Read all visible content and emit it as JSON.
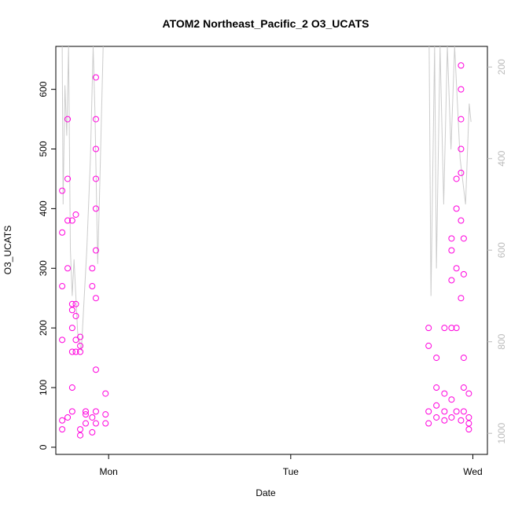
{
  "chart_data": {
    "type": "scatter",
    "title": "ATOM2 Northeast_Pacific_2 O3_UCATS",
    "xlabel": "Date",
    "ylabel": "O3_UCATS",
    "xlim": [
      -0.29,
      2.08
    ],
    "xticks": [
      {
        "value": 0,
        "label": "Mon"
      },
      {
        "value": 1,
        "label": "Tue"
      },
      {
        "value": 2,
        "label": "Wed"
      }
    ],
    "ylim": [
      -12,
      672
    ],
    "yticks": [
      0,
      100,
      200,
      300,
      400,
      500,
      600
    ],
    "y2lim": [
      1046,
      155
    ],
    "y2ticks": [
      200,
      400,
      600,
      800,
      1000
    ],
    "y2tick_color": "#bbbbbb",
    "series": [
      {
        "type": "line",
        "axis": "y2",
        "color": "#cccccc",
        "x": [
          -0.255,
          -0.25,
          -0.24,
          -0.23,
          -0.22,
          -0.21,
          -0.2,
          -0.19,
          -0.17,
          -0.15,
          -0.12,
          -0.1,
          -0.085,
          -0.075,
          -0.06,
          -0.05,
          -0.03,
          null,
          1.76,
          1.77,
          1.79,
          1.8,
          1.82,
          1.84,
          1.86,
          1.88,
          1.9,
          1.93,
          1.96,
          1.98,
          1.99
        ],
        "values": [
          155,
          500,
          240,
          350,
          155,
          600,
          700,
          620,
          780,
          820,
          600,
          400,
          155,
          300,
          630,
          480,
          155,
          null,
          155,
          700,
          155,
          640,
          155,
          500,
          155,
          380,
          155,
          400,
          500,
          280,
          320
        ]
      },
      {
        "type": "scatter",
        "color": "#ff00dd",
        "x": [
          -0.255,
          -0.255,
          -0.255,
          -0.255,
          -0.255,
          -0.255,
          -0.225,
          -0.225,
          -0.225,
          -0.225,
          -0.225,
          -0.2,
          -0.2,
          -0.2,
          -0.2,
          -0.2,
          -0.2,
          -0.2,
          -0.18,
          -0.18,
          -0.18,
          -0.18,
          -0.18,
          -0.156,
          -0.156,
          -0.156,
          -0.156,
          -0.156,
          -0.126,
          -0.126,
          -0.126,
          -0.09,
          -0.09,
          -0.09,
          -0.09,
          -0.07,
          -0.07,
          -0.07,
          -0.07,
          -0.07,
          -0.07,
          -0.07,
          -0.07,
          -0.07,
          -0.07,
          -0.017,
          -0.017,
          -0.017,
          1.757,
          1.757,
          1.757,
          1.757,
          1.8,
          1.8,
          1.8,
          1.8,
          1.844,
          1.844,
          1.844,
          1.844,
          1.883,
          1.883,
          1.883,
          1.883,
          1.883,
          1.883,
          1.91,
          1.91,
          1.91,
          1.91,
          1.91,
          1.935,
          1.935,
          1.935,
          1.935,
          1.935,
          1.935,
          1.935,
          1.935,
          1.95,
          1.95,
          1.95,
          1.95,
          1.95,
          1.978,
          1.978,
          1.978,
          1.978
        ],
        "values": [
          30,
          45,
          180,
          270,
          360,
          430,
          50,
          300,
          380,
          550,
          450,
          60,
          100,
          160,
          200,
          230,
          240,
          380,
          390,
          240,
          220,
          180,
          160,
          170,
          185,
          160,
          20,
          30,
          40,
          55,
          60,
          25,
          50,
          270,
          300,
          620,
          550,
          500,
          450,
          400,
          330,
          250,
          130,
          60,
          40,
          40,
          55,
          90,
          40,
          60,
          170,
          200,
          50,
          70,
          100,
          150,
          45,
          60,
          90,
          200,
          50,
          330,
          350,
          280,
          200,
          80,
          60,
          400,
          450,
          300,
          200,
          600,
          640,
          550,
          500,
          460,
          380,
          250,
          45,
          350,
          290,
          150,
          100,
          60,
          40,
          50,
          90,
          30
        ]
      }
    ]
  }
}
